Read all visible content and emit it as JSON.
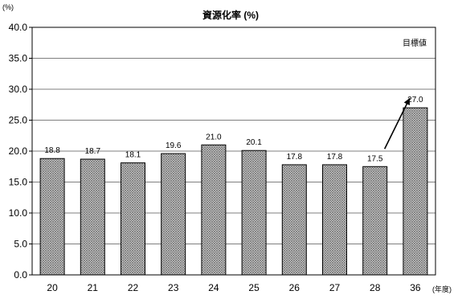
{
  "chart_data": {
    "type": "bar",
    "title": "資源化率 (%)",
    "y_unit": "(%)",
    "x_unit": "(年度)",
    "categories": [
      "20",
      "21",
      "22",
      "23",
      "24",
      "25",
      "26",
      "27",
      "28",
      "36"
    ],
    "values": [
      18.8,
      18.7,
      18.1,
      19.6,
      21.0,
      20.1,
      17.8,
      17.8,
      17.5,
      27.0
    ],
    "value_labels": [
      "18.8",
      "18.7",
      "18.1",
      "19.6",
      "21.0",
      "20.1",
      "17.8",
      "17.8",
      "17.5",
      "27.0"
    ],
    "ylim": [
      0,
      40
    ],
    "yticks": [
      "0.0",
      "5.0",
      "10.0",
      "15.0",
      "20.0",
      "25.0",
      "30.0",
      "35.0",
      "40.0"
    ],
    "grid": true,
    "annotation": "目標値",
    "bar_pattern": "crosshatch",
    "colors": {
      "bar_fill": "#bdbdbd",
      "bar_stroke": "#000000",
      "grid": "#000000"
    }
  }
}
